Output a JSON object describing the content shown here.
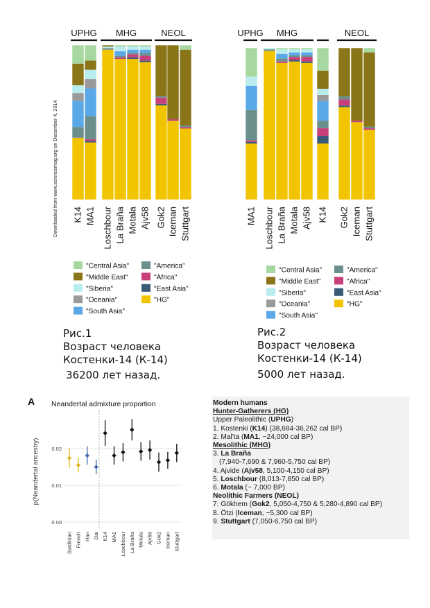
{
  "download_note": "Downloaded from www.sciencemag.org on December 4, 2014",
  "admix_legend": [
    {
      "label": "\"Central Asia\"",
      "color": "#a6d8a0"
    },
    {
      "label": "\"America\"",
      "color": "#6b8f8c"
    },
    {
      "label": "\"Middle East\"",
      "color": "#8a7518"
    },
    {
      "label": "\"Africa\"",
      "color": "#c8407a"
    },
    {
      "label": "\"Siberia\"",
      "color": "#b9ecec"
    },
    {
      "label": "\"East Asia\"",
      "color": "#3a5a7a"
    },
    {
      "label": "\"Oceania\"",
      "color": "#9a9a9a"
    },
    {
      "label": "\"HG\"",
      "color": "#f2c400"
    },
    {
      "label": "\"South Asia\"",
      "color": "#5aa8e8"
    }
  ],
  "caption1": {
    "line1": "Рис.1",
    "line2": "Возраст человека",
    "line3": "Костенки-14 (К-14)",
    "line4": "36200 лет назад."
  },
  "caption2": {
    "line1": "Рис.2",
    "line2": "Возраст человека",
    "line3": "Костенки-14 (К-14)",
    "line4": "5000 лет назад."
  },
  "panelA": {
    "letter": "A"
  },
  "info": {
    "l1": "Modern humans",
    "l2": "Hunter-Gatherers (HG)",
    "l3a": "Upper Paleolithic (",
    "l3b": "UPHG",
    "l3c": ")",
    "l4a": "1. Kostenki (",
    "l4b": "K14",
    "l4c": ") (38,684-36,262 cal BP)",
    "l5a": "2. Mal'ta (",
    "l5b": "MA1",
    "l5c": ", ~24,000  cal BP)",
    "l6": "Mesolithic (MHG)",
    "l7a": "3. ",
    "l7b": "La Braña",
    "l8": "(7,940-7,690 & 7,960-5,750 cal BP)",
    "l9a": "4. Ajvide (",
    "l9b": "Ajv58",
    "l9c": ", 5,100-4,150 cal BP)",
    "l10a": "5. ",
    "l10b": "Loschbour",
    "l10c": " (8,013-7,850 cal BP)",
    "l11a": "6. ",
    "l11b": "Motala",
    "l11c": " (~ 7,000 BP)",
    "l12": "Neolithic Farmers (NEOL)",
    "l13a": "7. Gökhem (",
    "l13b": "Gok2",
    "l13c": ", 5,050-4,750 & 5,280-4,890 cal BP)",
    "l14a": "8. Ötzi (",
    "l14b": "Iceman",
    "l14c": ", ~5,300 cal BP)",
    "l15a": "9. ",
    "l15b": "Stuttgart",
    "l15c": " (7,050-6,750 cal BP)"
  },
  "chart_data": [
    {
      "type": "bar",
      "stacked": true,
      "groups": [
        {
          "name": "UPHG",
          "samples": [
            "K14",
            "MA1"
          ]
        },
        {
          "name": "MHG",
          "samples": [
            "Loschbour",
            "La Braña",
            "Motala",
            "Ajv58"
          ]
        },
        {
          "name": "NEOL",
          "samples": [
            "Gok2",
            "Iceman",
            "Stuttgart"
          ]
        }
      ],
      "components_bottom_to_top": [
        "HG",
        "East Asia",
        "Africa",
        "America",
        "South Asia",
        "Oceania",
        "Siberia",
        "Middle East",
        "Central Asia"
      ],
      "bars": [
        {
          "sample": "K14",
          "values": [
            0.4,
            0.0,
            0.0,
            0.07,
            0.17,
            0.05,
            0.05,
            0.14,
            0.12
          ]
        },
        {
          "sample": "MA1",
          "values": [
            0.37,
            0.01,
            0.01,
            0.15,
            0.18,
            0.06,
            0.06,
            0.06,
            0.1
          ]
        },
        {
          "sample": "Loschbour",
          "values": [
            0.97,
            0.0,
            0.0,
            0.01,
            0.0,
            0.0,
            0.01,
            0.01,
            0.0
          ]
        },
        {
          "sample": "La Braña",
          "values": [
            0.91,
            0.0,
            0.01,
            0.01,
            0.03,
            0.0,
            0.03,
            0.0,
            0.01
          ]
        },
        {
          "sample": "Motala",
          "values": [
            0.91,
            0.01,
            0.02,
            0.01,
            0.02,
            0.0,
            0.02,
            0.0,
            0.01
          ]
        },
        {
          "sample": "Ajv58",
          "values": [
            0.89,
            0.01,
            0.03,
            0.02,
            0.02,
            0.0,
            0.02,
            0.0,
            0.01
          ]
        },
        {
          "sample": "Gok2",
          "values": [
            0.61,
            0.01,
            0.04,
            0.01,
            0.0,
            0.0,
            0.0,
            0.33,
            0.0
          ]
        },
        {
          "sample": "Iceman",
          "values": [
            0.51,
            0.0,
            0.01,
            0.0,
            0.0,
            0.0,
            0.0,
            0.48,
            0.0
          ]
        },
        {
          "sample": "Stuttgart",
          "values": [
            0.46,
            0.0,
            0.01,
            0.01,
            0.0,
            0.0,
            0.0,
            0.49,
            0.03
          ]
        }
      ]
    },
    {
      "type": "bar",
      "stacked": true,
      "groups": [
        {
          "name": "UPHG",
          "samples": [
            "MA1"
          ]
        },
        {
          "name": "MHG",
          "samples": [
            "Loschbour",
            "La Braña",
            "Motala",
            "Ajv58"
          ]
        },
        {
          "name": "",
          "samples": [
            "K14"
          ]
        },
        {
          "name": "NEOL",
          "samples": [
            "Gok2",
            "Iceman",
            "Stuttgart"
          ]
        }
      ],
      "components_bottom_to_top": [
        "HG",
        "East Asia",
        "Africa",
        "America",
        "South Asia",
        "Oceania",
        "Siberia",
        "Middle East",
        "Central Asia"
      ],
      "bars": [
        {
          "sample": "MA1",
          "values": [
            0.37,
            0.01,
            0.01,
            0.2,
            0.16,
            0.0,
            0.06,
            0.0,
            0.19
          ]
        },
        {
          "sample": "Loschbour",
          "values": [
            0.98,
            0.0,
            0.0,
            0.01,
            0.0,
            0.0,
            0.01,
            0.0,
            0.0
          ]
        },
        {
          "sample": "La Braña",
          "values": [
            0.9,
            0.0,
            0.01,
            0.02,
            0.03,
            0.0,
            0.03,
            0.0,
            0.01
          ]
        },
        {
          "sample": "Motala",
          "values": [
            0.91,
            0.01,
            0.02,
            0.01,
            0.02,
            0.0,
            0.02,
            0.0,
            0.01
          ]
        },
        {
          "sample": "Ajv58",
          "values": [
            0.9,
            0.01,
            0.03,
            0.01,
            0.02,
            0.0,
            0.02,
            0.0,
            0.01
          ]
        },
        {
          "sample": "K14",
          "values": [
            0.37,
            0.05,
            0.05,
            0.05,
            0.13,
            0.04,
            0.04,
            0.12,
            0.15
          ]
        },
        {
          "sample": "Gok2",
          "values": [
            0.61,
            0.01,
            0.04,
            0.02,
            0.0,
            0.0,
            0.0,
            0.32,
            0.0
          ]
        },
        {
          "sample": "Iceman",
          "values": [
            0.51,
            0.0,
            0.01,
            0.0,
            0.0,
            0.0,
            0.0,
            0.48,
            0.0
          ]
        },
        {
          "sample": "Stuttgart",
          "values": [
            0.46,
            0.0,
            0.01,
            0.01,
            0.0,
            0.0,
            0.0,
            0.49,
            0.03
          ]
        }
      ]
    },
    {
      "type": "scatter",
      "title": "Neandertal admixture proportion",
      "ylabel": "p(Neandertal ancestry)",
      "ylim": [
        0,
        0.03
      ],
      "yticks": [
        "0.00",
        "0.01",
        "0.02"
      ],
      "categories": [
        "Sardinian",
        "French",
        "Han",
        "Dai",
        "K14",
        "MA1",
        "Loschbour",
        "La Braña",
        "Motala",
        "Ajv58",
        "Gok2",
        "Iceman",
        "Stuttgart"
      ],
      "values": [
        0.0174,
        0.0155,
        0.0181,
        0.015,
        0.0242,
        0.0181,
        0.019,
        0.0251,
        0.0192,
        0.0196,
        0.0163,
        0.0168,
        0.0188
      ],
      "lower": [
        0.0148,
        0.0135,
        0.0156,
        0.013,
        0.0207,
        0.0156,
        0.0165,
        0.0222,
        0.0167,
        0.017,
        0.0137,
        0.0145,
        0.0163
      ],
      "upper": [
        0.02,
        0.0175,
        0.0206,
        0.017,
        0.0277,
        0.0206,
        0.0215,
        0.028,
        0.0217,
        0.0222,
        0.0189,
        0.0191,
        0.0213
      ],
      "colors": [
        "#e2b61a",
        "#e2b61a",
        "#3d6fa8",
        "#3d6fa8",
        "#111111",
        "#111111",
        "#111111",
        "#111111",
        "#111111",
        "#111111",
        "#111111",
        "#111111",
        "#111111"
      ],
      "grid": true
    }
  ]
}
